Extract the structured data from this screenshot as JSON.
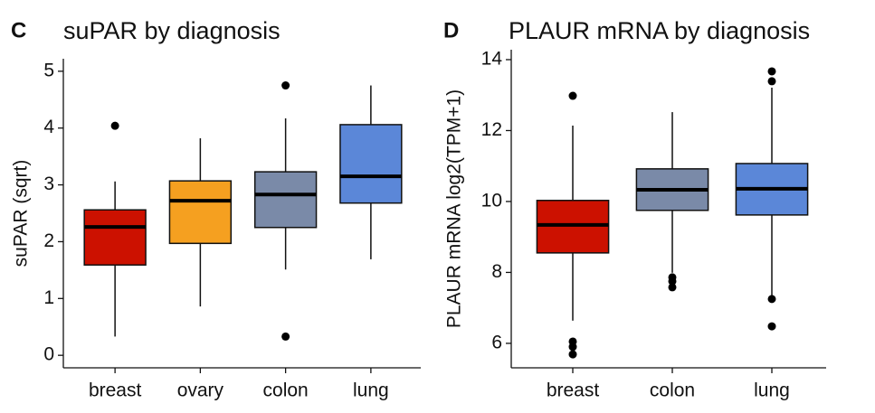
{
  "chart_data": [
    {
      "type": "box",
      "panel_label": "C",
      "title": "suPAR by diagnosis",
      "y_label": "suPAR (sqrt)",
      "categories": [
        "breast",
        "ovary",
        "colon",
        "lung"
      ],
      "colors": [
        "#cc1100",
        "#f5a020",
        "#7a8aa8",
        "#5b87d8"
      ],
      "boxes": [
        {
          "whisker_low": 0.33,
          "q1": 1.59,
          "median": 2.26,
          "q3": 2.56,
          "whisker_high": 3.06,
          "outliers": [
            4.04
          ]
        },
        {
          "whisker_low": 0.86,
          "q1": 1.97,
          "median": 2.72,
          "q3": 3.07,
          "whisker_high": 3.82,
          "outliers": []
        },
        {
          "whisker_low": 1.51,
          "q1": 2.25,
          "median": 2.83,
          "q3": 3.23,
          "whisker_high": 4.17,
          "outliers": [
            4.75,
            0.33
          ]
        },
        {
          "whisker_low": 1.69,
          "q1": 2.68,
          "median": 3.15,
          "q3": 4.06,
          "whisker_high": 4.75,
          "outliers": []
        }
      ],
      "ylim": [
        -0.22,
        5.22
      ],
      "yticks": [
        0,
        1,
        2,
        3,
        4,
        5
      ]
    },
    {
      "type": "box",
      "panel_label": "D",
      "title": "PLAUR mRNA by diagnosis",
      "y_label": "PLAUR mRNA log2(TPM+1)",
      "categories": [
        "breast",
        "colon",
        "lung"
      ],
      "colors": [
        "#cc1100",
        "#7a8aa8",
        "#5b87d8"
      ],
      "boxes": [
        {
          "whisker_low": 6.64,
          "q1": 8.55,
          "median": 9.34,
          "q3": 10.03,
          "whisker_high": 12.14,
          "outliers": [
            12.98,
            6.05,
            5.9,
            5.69
          ]
        },
        {
          "whisker_low": 7.99,
          "q1": 9.75,
          "median": 10.33,
          "q3": 10.92,
          "whisker_high": 12.52,
          "outliers": [
            7.86,
            7.75,
            7.58
          ]
        },
        {
          "whisker_low": 7.27,
          "q1": 9.62,
          "median": 10.36,
          "q3": 11.07,
          "whisker_high": 13.21,
          "outliers": [
            13.67,
            13.39,
            7.25,
            6.48
          ]
        }
      ],
      "ylim": [
        5.31,
        14.28
      ],
      "yticks": [
        6,
        8,
        10,
        12,
        14
      ]
    }
  ]
}
